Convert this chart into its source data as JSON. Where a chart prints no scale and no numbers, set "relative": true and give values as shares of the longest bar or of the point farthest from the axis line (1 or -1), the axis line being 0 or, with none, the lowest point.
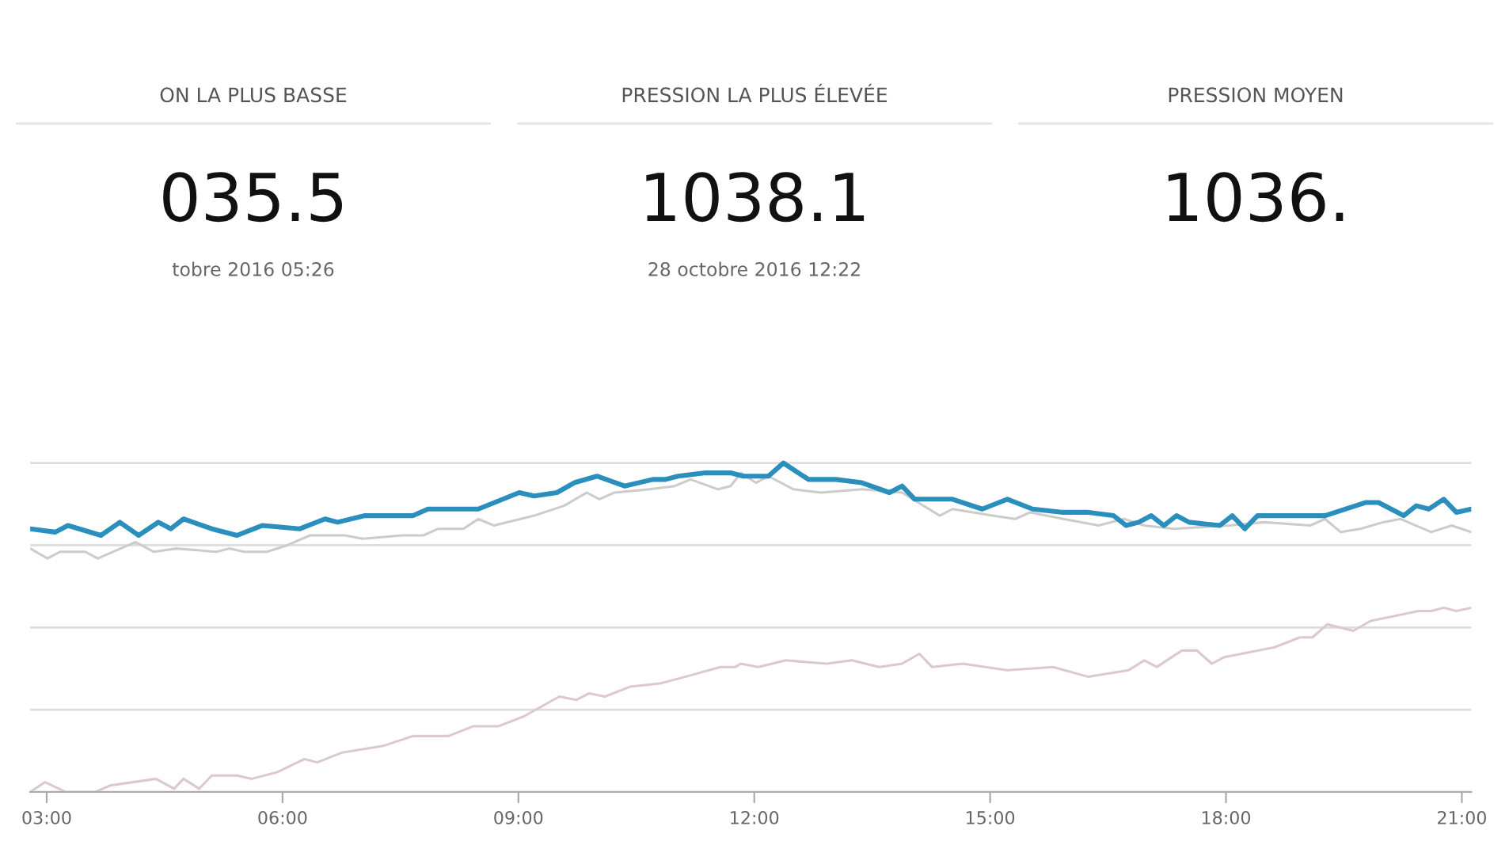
{
  "chart_data": [
    {
      "type": "other",
      "title": "ON LA PLUS BASSE",
      "annotations": [
        "035.5",
        "tobre 2016 05:26"
      ]
    },
    {
      "type": "other",
      "title": "PRESSION LA PLUS ÉLEVÉE",
      "annotations": [
        "1038.1",
        "28 octobre 2016 12:22"
      ]
    },
    {
      "type": "other",
      "title": "PRESSION MOYEN",
      "annotations": [
        "1036."
      ]
    },
    {
      "type": "line",
      "relative": true,
      "grid": "y",
      "xlim": [
        2.79,
        21.12
      ],
      "xticks": [
        {
          "value": 3,
          "label": "03:00"
        },
        {
          "value": 6,
          "label": "06:00"
        },
        {
          "value": 9,
          "label": "09:00"
        },
        {
          "value": 12,
          "label": "12:00"
        },
        {
          "value": 15,
          "label": "15:00"
        },
        {
          "value": 18,
          "label": "18:00"
        },
        {
          "value": 21,
          "label": "21:00"
        }
      ],
      "series": [
        {
          "color": "#dcc9cd",
          "x": [
            2.79,
            2.98,
            3.24,
            3.62,
            3.81,
            4.39,
            4.62,
            4.74,
            4.94,
            5.1,
            5.42,
            5.61,
            5.93,
            6.28,
            6.44,
            6.76,
            7.28,
            7.66,
            8.11,
            8.43,
            8.75,
            9.07,
            9.52,
            9.74,
            9.9,
            10.1,
            10.42,
            10.8,
            11.12,
            11.57,
            11.76,
            11.83,
            12.05,
            12.4,
            12.92,
            13.24,
            13.59,
            13.88,
            14.1,
            14.26,
            14.65,
            15.22,
            15.8,
            16.25,
            16.76,
            16.96,
            17.12,
            17.44,
            17.63,
            17.82,
            17.98,
            18.62,
            18.94,
            19.1,
            19.29,
            19.62,
            19.84,
            20.45,
            20.61,
            20.77,
            20.93,
            21.12
          ],
          "values": [
            0.0,
            0.03,
            0.0,
            0.0,
            0.02,
            0.04,
            0.01,
            0.04,
            0.01,
            0.05,
            0.05,
            0.04,
            0.06,
            0.1,
            0.09,
            0.12,
            0.14,
            0.17,
            0.17,
            0.2,
            0.2,
            0.23,
            0.29,
            0.28,
            0.3,
            0.29,
            0.32,
            0.33,
            0.35,
            0.38,
            0.38,
            0.39,
            0.38,
            0.4,
            0.39,
            0.4,
            0.38,
            0.39,
            0.42,
            0.38,
            0.39,
            0.37,
            0.38,
            0.35,
            0.37,
            0.4,
            0.38,
            0.43,
            0.43,
            0.39,
            0.41,
            0.44,
            0.47,
            0.47,
            0.51,
            0.49,
            0.52,
            0.55,
            0.55,
            0.56,
            0.55,
            0.56
          ]
        },
        {
          "color": "#cccccc",
          "x": [
            2.79,
            3.01,
            3.17,
            3.49,
            3.65,
            3.94,
            4.13,
            4.36,
            4.65,
            5.16,
            5.32,
            5.51,
            5.8,
            6.06,
            6.35,
            6.79,
            7.02,
            7.53,
            7.79,
            7.98,
            8.3,
            8.49,
            8.69,
            9.2,
            9.58,
            9.87,
            10.03,
            10.22,
            10.67,
            10.99,
            11.19,
            11.54,
            11.7,
            11.83,
            12.02,
            12.18,
            12.5,
            12.85,
            13.37,
            13.88,
            14.36,
            14.52,
            15.03,
            15.32,
            15.51,
            15.93,
            16.38,
            16.7,
            16.96,
            17.34,
            18.04,
            18.49,
            19.07,
            19.26,
            19.46,
            19.71,
            20.0,
            20.22,
            20.61,
            20.87,
            21.12
          ],
          "values": [
            0.74,
            0.71,
            0.73,
            0.73,
            0.71,
            0.74,
            0.76,
            0.73,
            0.74,
            0.73,
            0.74,
            0.73,
            0.73,
            0.75,
            0.78,
            0.78,
            0.77,
            0.78,
            0.78,
            0.8,
            0.8,
            0.83,
            0.81,
            0.84,
            0.87,
            0.91,
            0.89,
            0.91,
            0.92,
            0.93,
            0.95,
            0.92,
            0.93,
            0.97,
            0.94,
            0.96,
            0.92,
            0.91,
            0.92,
            0.91,
            0.84,
            0.86,
            0.84,
            0.83,
            0.85,
            0.83,
            0.81,
            0.83,
            0.81,
            0.8,
            0.81,
            0.82,
            0.81,
            0.83,
            0.79,
            0.8,
            0.82,
            0.83,
            0.79,
            0.81,
            0.79
          ]
        },
        {
          "color": "#2a8fbd",
          "x": [
            2.79,
            3.11,
            3.27,
            3.69,
            3.93,
            4.17,
            4.42,
            4.58,
            4.74,
            5.1,
            5.42,
            5.74,
            6.22,
            6.54,
            6.7,
            7.05,
            7.66,
            7.85,
            8.49,
            9.01,
            9.2,
            9.49,
            9.71,
            10.0,
            10.35,
            10.71,
            10.87,
            11.03,
            11.38,
            11.7,
            11.86,
            12.18,
            12.37,
            12.69,
            13.04,
            13.37,
            13.72,
            13.88,
            14.04,
            14.52,
            14.9,
            15.22,
            15.54,
            15.93,
            16.25,
            16.57,
            16.73,
            16.89,
            17.05,
            17.21,
            17.37,
            17.53,
            17.92,
            18.08,
            18.24,
            18.4,
            18.72,
            19.26,
            19.78,
            19.94,
            20.26,
            20.42,
            20.58,
            20.77,
            20.93,
            21.12
          ],
          "values": [
            0.8,
            0.79,
            0.81,
            0.78,
            0.82,
            0.78,
            0.82,
            0.8,
            0.83,
            0.8,
            0.78,
            0.81,
            0.8,
            0.83,
            0.82,
            0.84,
            0.84,
            0.86,
            0.86,
            0.91,
            0.9,
            0.91,
            0.94,
            0.96,
            0.93,
            0.95,
            0.95,
            0.96,
            0.97,
            0.97,
            0.96,
            0.96,
            1.0,
            0.95,
            0.95,
            0.94,
            0.91,
            0.93,
            0.89,
            0.89,
            0.86,
            0.89,
            0.86,
            0.85,
            0.85,
            0.84,
            0.81,
            0.82,
            0.84,
            0.81,
            0.84,
            0.82,
            0.81,
            0.84,
            0.8,
            0.84,
            0.84,
            0.84,
            0.88,
            0.88,
            0.84,
            0.87,
            0.86,
            0.89,
            0.85,
            0.86
          ]
        }
      ]
    }
  ]
}
